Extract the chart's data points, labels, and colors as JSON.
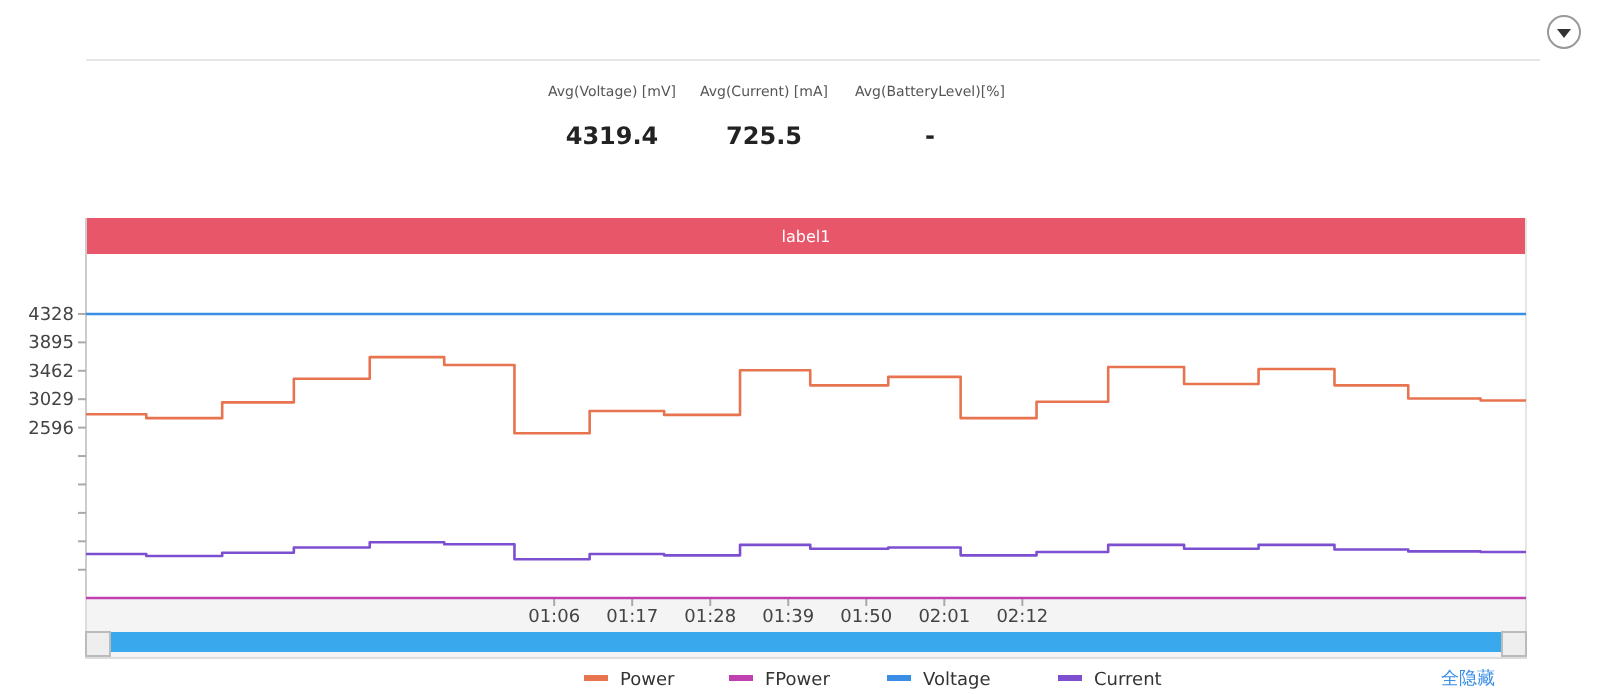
{
  "chart_data": {
    "type": "step",
    "annotations": [
      "Avg(Voltage) [mV]",
      "4319.4",
      "Avg(Current) [mA]",
      "725.5",
      "Avg(BatteryLevel)[%]",
      "-",
      "全隐藏"
    ],
    "xlim": [
      0,
      203
    ],
    "xticks": [
      {
        "value": 66,
        "label": "01:06"
      },
      {
        "value": 77,
        "label": "01:17"
      },
      {
        "value": 88,
        "label": "01:28"
      },
      {
        "value": 99,
        "label": "01:39"
      },
      {
        "value": 110,
        "label": "01:50"
      },
      {
        "value": 121,
        "label": "02:01"
      },
      {
        "value": 132,
        "label": "02:12"
      }
    ],
    "ylim": [
      0,
      5790
    ],
    "yticks": [
      {
        "value": 431,
        "label": null
      },
      {
        "value": 864,
        "label": null
      },
      {
        "value": 1297,
        "label": null
      },
      {
        "value": 1730,
        "label": null
      },
      {
        "value": 2163,
        "label": null
      },
      2596,
      3029,
      3462,
      3895,
      4328
    ],
    "x": [
      0,
      8.5,
      19.2,
      29.3,
      40,
      50.5,
      60.4,
      71,
      81.5,
      92.2,
      102.1,
      113.1,
      123.3,
      134,
      144.1,
      154.8,
      165.3,
      176,
      186.4,
      196.6,
      203
    ],
    "series": [
      {
        "name": "Power",
        "color": "#e8734f",
        "values": [
          2800,
          2740,
          2980,
          3340,
          3670,
          3550,
          2510,
          2850,
          2790,
          3470,
          3240,
          3370,
          2740,
          2990,
          3520,
          3260,
          3490,
          3240,
          3040,
          3010,
          3010
        ]
      },
      {
        "name": "FPower",
        "color": "#c040b0",
        "values": [
          0,
          0,
          0,
          0,
          0,
          0,
          0,
          0,
          0,
          0,
          0,
          0,
          0,
          0,
          0,
          0,
          0,
          0,
          0,
          0,
          0
        ]
      },
      {
        "name": "Voltage",
        "color": "#3a8ee6",
        "values": [
          4328,
          4328,
          4328,
          4328,
          4328,
          4328,
          4328,
          4328,
          4328,
          4328,
          4328,
          4328,
          4328,
          4328,
          4328,
          4328,
          4328,
          4328,
          4328,
          4328,
          4328
        ]
      },
      {
        "name": "Current",
        "color": "#7b4fd0",
        "values": [
          670,
          640,
          690,
          770,
          850,
          820,
          590,
          670,
          650,
          810,
          750,
          770,
          650,
          700,
          810,
          750,
          810,
          740,
          710,
          700,
          700
        ]
      }
    ],
    "bands": [
      {
        "axis": "x",
        "from": 0,
        "to": 203,
        "label": "label1",
        "color": "#e8566a"
      }
    ],
    "legend": "bottom",
    "grid": false,
    "marker": "none",
    "line_style": "solid"
  }
}
